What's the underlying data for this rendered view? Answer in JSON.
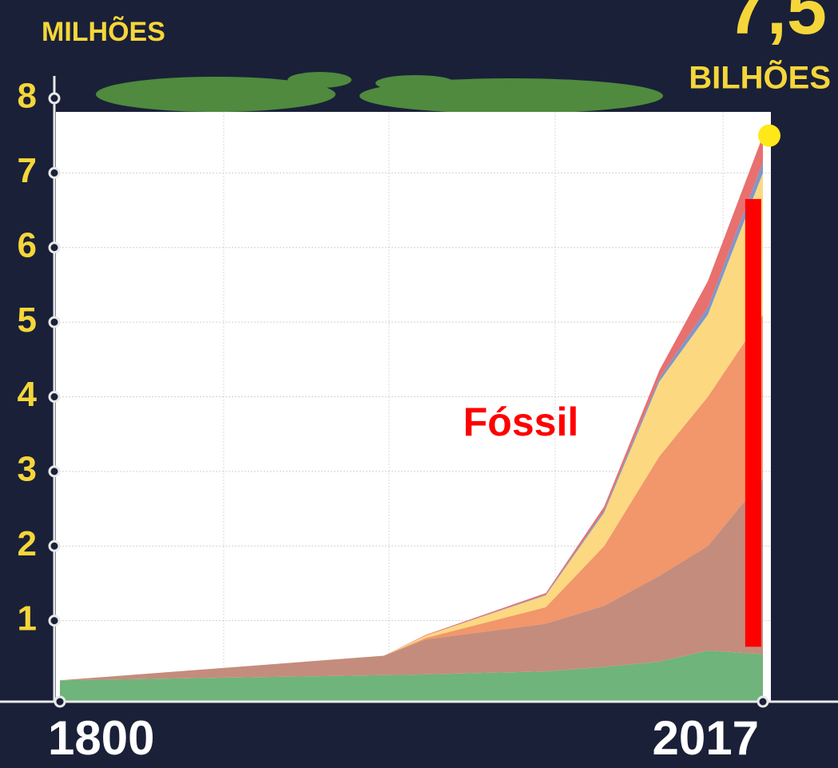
{
  "chart_data": {
    "type": "stacked_area",
    "y_label": "MILHÕES",
    "x": [
      1800,
      1900,
      1913,
      1950,
      1968,
      1985,
      2000,
      2017
    ],
    "series": [
      {
        "color": "#6fb47a",
        "values": [
          0.2,
          0.27,
          0.28,
          0.32,
          0.38,
          0.45,
          0.6,
          0.55
        ]
      },
      {
        "color": "#c48c7c",
        "values": [
          0,
          0.26,
          0.47,
          0.64,
          0.82,
          1.15,
          1.4,
          2.35
        ]
      },
      {
        "color": "#f2966b",
        "values": [
          0,
          0,
          0.02,
          0.22,
          0.8,
          1.6,
          2.0,
          2.2
        ]
      },
      {
        "color": "#fcd880",
        "values": [
          0,
          0,
          0.03,
          0.16,
          0.45,
          1.0,
          1.1,
          1.9
        ]
      },
      {
        "color": "#7f97c9",
        "values": [
          0,
          0,
          0,
          0.01,
          0.03,
          0.05,
          0.1,
          0.15
        ]
      },
      {
        "color": "#e8706e",
        "values": [
          0,
          0,
          0.01,
          0.02,
          0.05,
          0.1,
          0.35,
          0.35
        ]
      }
    ],
    "xlim": [
      1800,
      2017
    ],
    "xticks": [
      1800,
      2017
    ],
    "ylim": [
      0,
      8
    ],
    "yticks": [
      1,
      2,
      3,
      4,
      5,
      6,
      7,
      8
    ],
    "grid": true,
    "total": {
      "x": 2017,
      "value": 7.5,
      "label": "7,5",
      "unit": "BILHÕES",
      "color": "#ffe81a"
    },
    "highlight": {
      "label": "Fóssil",
      "x": 2014,
      "range": [
        0.65,
        6.65
      ],
      "color": "#ff0000"
    }
  }
}
